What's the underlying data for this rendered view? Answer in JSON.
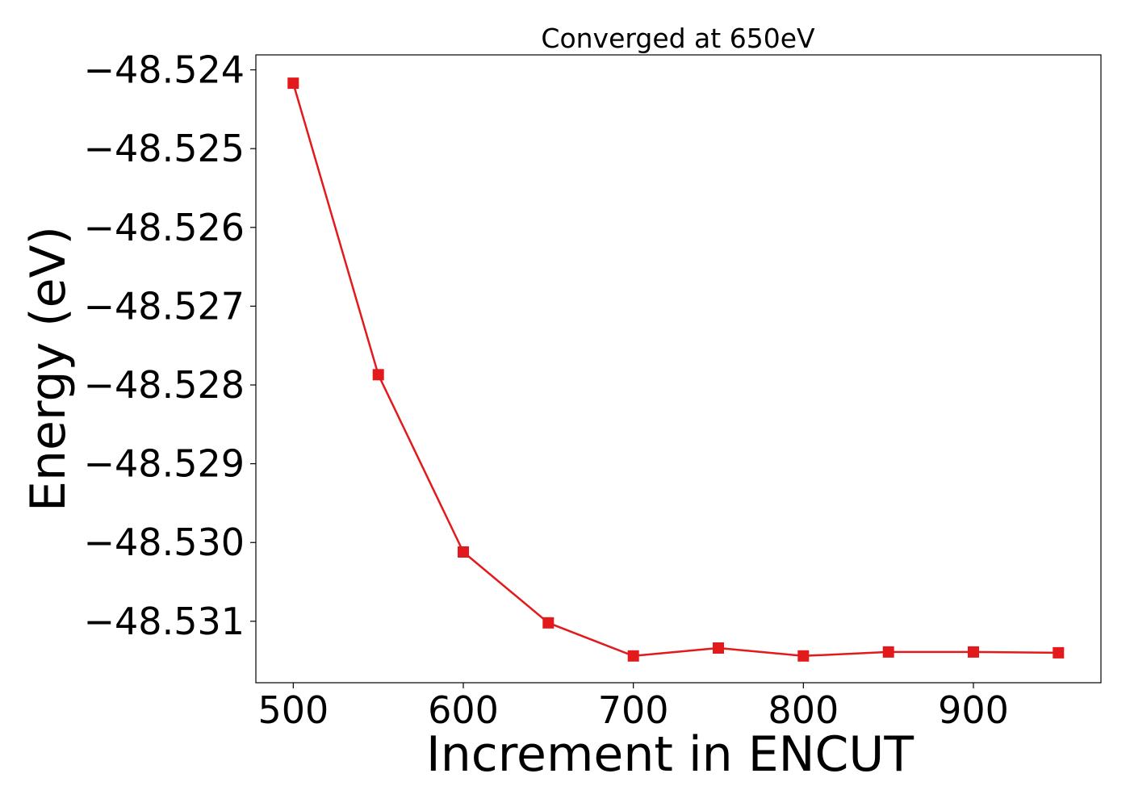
{
  "chart_data": {
    "type": "line",
    "title": "Converged at 650eV",
    "xlabel": "Increment in ENCUT",
    "ylabel": "Energy (eV)",
    "x": [
      500,
      550,
      600,
      650,
      700,
      750,
      800,
      850,
      900,
      950
    ],
    "series": [
      {
        "values": [
          -48.52417,
          -48.52787,
          -48.53012,
          -48.53102,
          -48.53144,
          -48.53134,
          -48.53144,
          -48.53139,
          -48.53139,
          -48.5314
        ],
        "color": "#e31a1c",
        "marker": "square"
      }
    ],
    "xlim": [
      478,
      975
    ],
    "ylim": [
      -48.53178,
      -48.52381
    ],
    "xticks": [
      500,
      600,
      700,
      800,
      900
    ],
    "xtick_labels": [
      "500",
      "600",
      "700",
      "800",
      "900"
    ],
    "yticks": [
      -48.524,
      -48.525,
      -48.526,
      -48.527,
      -48.528,
      -48.529,
      -48.53,
      -48.531
    ],
    "ytick_labels": [
      "−48.524",
      "−48.525",
      "−48.526",
      "−48.527",
      "−48.528",
      "−48.529",
      "−48.530",
      "−48.531"
    ],
    "grid": false,
    "legend": "none"
  }
}
